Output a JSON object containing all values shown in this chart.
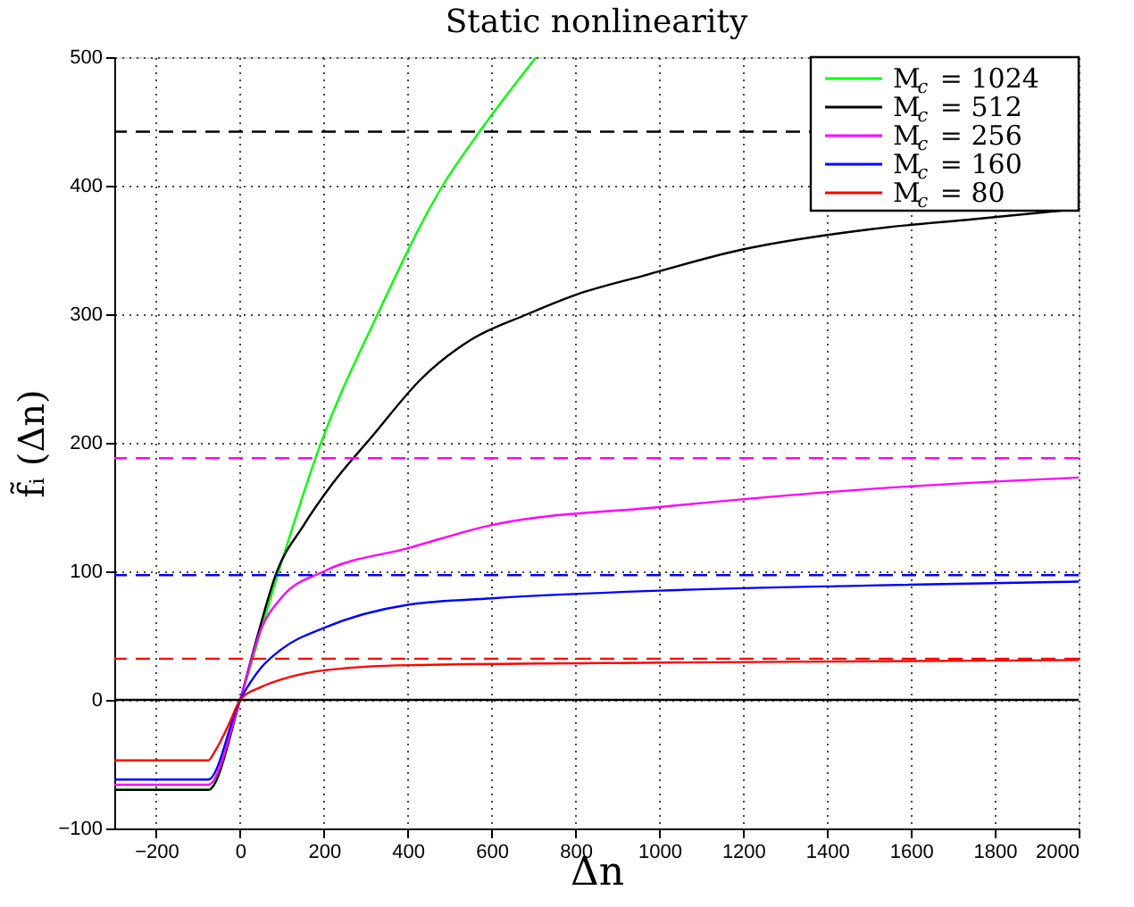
{
  "chart_data": {
    "type": "line",
    "title": "Static nonlinearity",
    "xlabel": "Δn",
    "ylabel": "f̃ᵢ (Δn)",
    "xlim": [
      -300,
      2000
    ],
    "ylim": [
      -100,
      500
    ],
    "xticks": [
      -200,
      0,
      200,
      400,
      600,
      800,
      1000,
      1200,
      1400,
      1600,
      1800,
      2000
    ],
    "yticks": [
      -100,
      0,
      100,
      200,
      300,
      400,
      500
    ],
    "grid": true,
    "legend": "top right",
    "line_style": "solid",
    "marker": "none",
    "series": [
      {
        "name": "M$_{c}$ = 1024",
        "color": "#00ff00",
        "x": [
          -300,
          -76,
          0,
          92,
          193,
          328,
          483,
          571,
          706
        ],
        "values": [
          -70,
          -70,
          0,
          100,
          200,
          300,
          400,
          442,
          500
        ]
      },
      {
        "name": "M$_{c}$ = 512",
        "color": "#000000",
        "x": [
          -300,
          -76,
          0,
          40,
          88,
          150,
          220,
          315,
          433,
          550,
          685,
          800,
          962,
          1193,
          1500,
          1750,
          2000
        ],
        "values": [
          -70,
          -70,
          0,
          48,
          100,
          135,
          168,
          205,
          250,
          280,
          300,
          315,
          330,
          350,
          366,
          374,
          382
        ]
      },
      {
        "name": "M$_{c}$ = 256",
        "color": "#ff00ff",
        "x": [
          -300,
          -76,
          0,
          50,
          100,
          200,
          400,
          600,
          1000,
          1500,
          2000
        ],
        "values": [
          -66,
          -66,
          0,
          55,
          80,
          100,
          118,
          136,
          150,
          164,
          173
        ]
      },
      {
        "name": "M$_{c}$ = 160",
        "color": "#0000ff",
        "x": [
          -300,
          -76,
          0,
          50,
          97,
          200,
          400,
          600,
          1000,
          1500,
          2000
        ],
        "values": [
          -62,
          -62,
          0,
          25,
          39,
          56,
          74,
          79,
          85,
          89,
          92
        ]
      },
      {
        "name": "M$_{c}$ = 80",
        "color": "#ff0000",
        "x": [
          -300,
          -76,
          -60,
          -40,
          -20,
          0,
          50,
          100,
          200,
          400,
          1000,
          1500,
          2000
        ],
        "values": [
          -47,
          -47,
          -40,
          -28,
          -14,
          0,
          10,
          16,
          23,
          27,
          29,
          30,
          31
        ]
      }
    ],
    "ref_lines": [
      {
        "axis": "y",
        "value": 0,
        "color": "#000000",
        "line_style": "solid"
      },
      {
        "axis": "y",
        "value": 442,
        "color": "#000000",
        "line_style": "dashed"
      },
      {
        "axis": "y",
        "value": 188,
        "color": "#ff00ff",
        "line_style": "dashed"
      },
      {
        "axis": "y",
        "value": 97,
        "color": "#0000ff",
        "line_style": "dashed"
      },
      {
        "axis": "y",
        "value": 32,
        "color": "#ff0000",
        "line_style": "dashed"
      }
    ]
  }
}
